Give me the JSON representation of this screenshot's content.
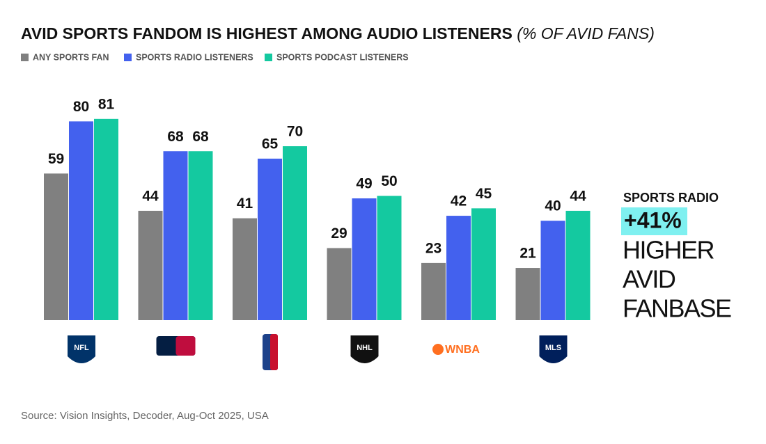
{
  "chart_data": {
    "type": "bar",
    "title": "AVID SPORTS FANDOM IS HIGHEST AMONG AUDIO LISTENERS",
    "subtitle": "(% OF AVID FANS)",
    "categories": [
      "NFL",
      null,
      null,
      "NHL",
      "WNBA",
      "MLS"
    ],
    "series": [
      {
        "name": "ANY SPORTS FAN",
        "color": "#808080",
        "values": [
          59,
          44,
          41,
          29,
          23,
          21
        ]
      },
      {
        "name": "SPORTS RADIO LISTENERS",
        "color": "#4361ee",
        "values": [
          80,
          68,
          65,
          49,
          42,
          40
        ]
      },
      {
        "name": "SPORTS PODCAST LISTENERS",
        "color": "#14c9a0",
        "values": [
          81,
          68,
          70,
          50,
          45,
          44
        ]
      }
    ],
    "ylim": [
      0,
      100
    ],
    "annotation": {
      "label": "SPORTS RADIO",
      "highlight": "+41%",
      "lines": [
        "HIGHER",
        "AVID",
        "FANBASE"
      ]
    },
    "source": "Source: Vision Insights, Decoder, Aug-Oct 2025, USA"
  }
}
